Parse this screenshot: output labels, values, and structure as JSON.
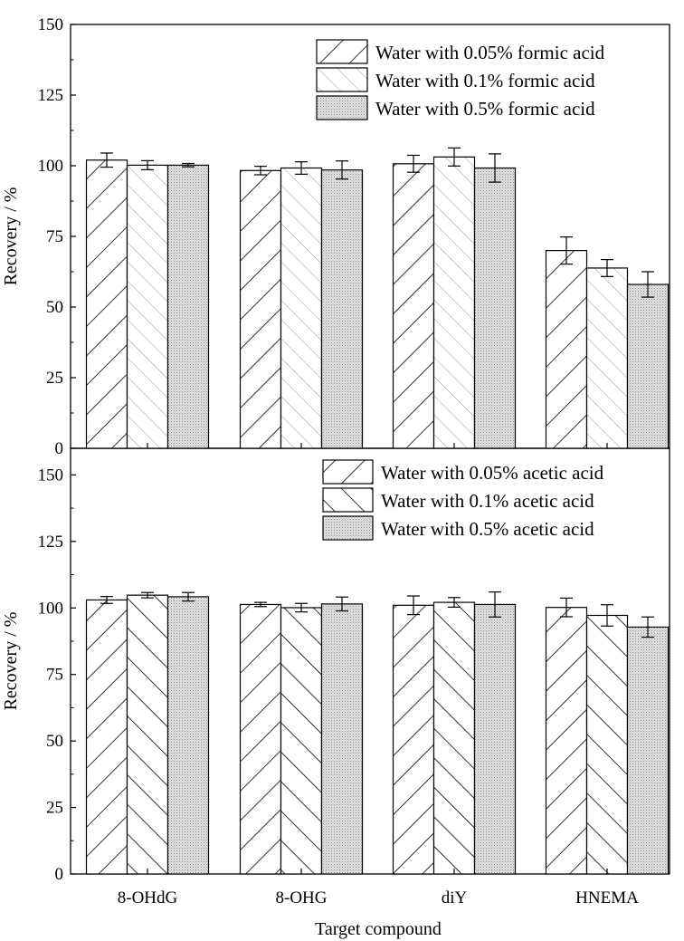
{
  "chart_data": [
    {
      "type": "bar",
      "panel": "top",
      "categories": [
        "8-OHdG",
        "8-OHG",
        "diY",
        "HNEMA"
      ],
      "series": [
        {
          "name": "Water with 0.05% formic acid",
          "pattern": "hatch-forward",
          "values": [
            102,
            98.3,
            100.7,
            70
          ],
          "errors": [
            2.5,
            1.5,
            3.0,
            4.8
          ]
        },
        {
          "name": "Water with 0.1% formic acid",
          "pattern": "hatch-back-light",
          "values": [
            100.2,
            99.2,
            103.1,
            63.8
          ],
          "errors": [
            1.6,
            2.2,
            3.2,
            3.0
          ]
        },
        {
          "name": "Water with 0.5% formic acid",
          "pattern": "dots",
          "values": [
            100.2,
            98.5,
            99.2,
            58
          ],
          "errors": [
            0.6,
            3.2,
            5.0,
            4.5
          ]
        }
      ],
      "ylabel": "Recovery / %",
      "xlabel": "",
      "ylim": [
        0,
        150
      ],
      "yticks": [
        0,
        25,
        50,
        75,
        100,
        125,
        150
      ],
      "legend_position": "top-right"
    },
    {
      "type": "bar",
      "panel": "bottom",
      "categories": [
        "8-OHdG",
        "8-OHG",
        "diY",
        "HNEMA"
      ],
      "series": [
        {
          "name": "Water with 0.05% acetic acid",
          "pattern": "hatch-forward",
          "values": [
            103,
            101.3,
            101,
            100.2
          ],
          "errors": [
            1.3,
            0.8,
            3.5,
            3.5
          ]
        },
        {
          "name": "Water with 0.1% acetic acid",
          "pattern": "hatch-back",
          "values": [
            104.8,
            100.1,
            102.1,
            97.2
          ],
          "errors": [
            1.0,
            1.6,
            1.8,
            4.0
          ]
        },
        {
          "name": "Water with 0.5% acetic acid",
          "pattern": "dots",
          "values": [
            104.2,
            101.5,
            101.3,
            92.8
          ],
          "errors": [
            1.6,
            2.6,
            4.7,
            3.8
          ]
        }
      ],
      "ylabel": "Recovery / %",
      "xlabel": "Target compound",
      "ylim": [
        0,
        160
      ],
      "yticks": [
        0,
        25,
        50,
        75,
        100,
        125,
        150
      ],
      "legend_position": "top-right"
    }
  ]
}
